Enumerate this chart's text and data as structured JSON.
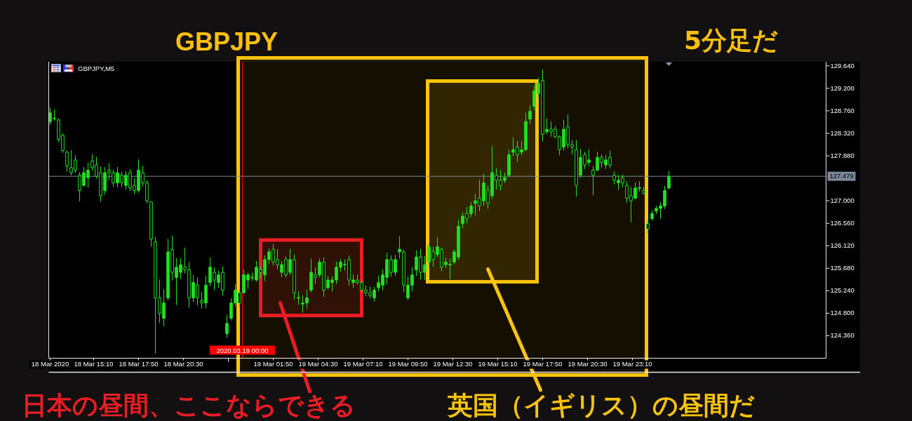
{
  "chart_data": {
    "type": "candlestick",
    "title": "GBPJPY",
    "subtitle": "GBPJPY,M5",
    "annotations": [
      "5分足だ"
    ],
    "color": "#22e022",
    "x": [
      "2020-03-18T12:35",
      "2020-03-18T12:50",
      "2020-03-18T13:05",
      "2020-03-18T13:20",
      "2020-03-18T13:35",
      "2020-03-18T13:50",
      "2020-03-18T14:05",
      "2020-03-18T14:20",
      "2020-03-18T14:35",
      "2020-03-18T14:50",
      "2020-03-18T15:05",
      "2020-03-18T15:20",
      "2020-03-18T15:35",
      "2020-03-18T15:50",
      "2020-03-18T16:05",
      "2020-03-18T16:20",
      "2020-03-18T16:35",
      "2020-03-18T16:50",
      "2020-03-18T17:05",
      "2020-03-18T17:20",
      "2020-03-18T17:35",
      "2020-03-18T17:50",
      "2020-03-18T18:05",
      "2020-03-18T18:20",
      "2020-03-18T18:35",
      "2020-03-18T18:50",
      "2020-03-18T19:05",
      "2020-03-18T19:20",
      "2020-03-18T19:35",
      "2020-03-18T19:50",
      "2020-03-18T20:05",
      "2020-03-18T20:20",
      "2020-03-18T20:35",
      "2020-03-18T20:50",
      "2020-03-18T21:05",
      "2020-03-18T21:20",
      "2020-03-18T21:35",
      "2020-03-18T21:50",
      "2020-03-18T22:05",
      "2020-03-18T22:20",
      "2020-03-18T22:35",
      "2020-03-18T22:50",
      "2020-03-18T23:05",
      "2020-03-18T23:20",
      "2020-03-18T23:35",
      "2020-03-18T23:50",
      "2020-03-19T00:05",
      "2020-03-19T00:20",
      "2020-03-19T00:35",
      "2020-03-19T00:50",
      "2020-03-19T01:05",
      "2020-03-19T01:20",
      "2020-03-19T01:35",
      "2020-03-19T01:50",
      "2020-03-19T02:05",
      "2020-03-19T02:20",
      "2020-03-19T02:35",
      "2020-03-19T02:50",
      "2020-03-19T03:05",
      "2020-03-19T03:20",
      "2020-03-19T03:35",
      "2020-03-19T03:50",
      "2020-03-19T04:05",
      "2020-03-19T04:20",
      "2020-03-19T04:35",
      "2020-03-19T04:50",
      "2020-03-19T05:05",
      "2020-03-19T05:20",
      "2020-03-19T05:35",
      "2020-03-19T05:50",
      "2020-03-19T06:05",
      "2020-03-19T06:20",
      "2020-03-19T06:35",
      "2020-03-19T06:50",
      "2020-03-19T07:05",
      "2020-03-19T07:20",
      "2020-03-19T07:35",
      "2020-03-19T07:50",
      "2020-03-19T08:05",
      "2020-03-19T08:20",
      "2020-03-19T08:35",
      "2020-03-19T08:50",
      "2020-03-19T09:05",
      "2020-03-19T09:20",
      "2020-03-19T09:35",
      "2020-03-19T09:50",
      "2020-03-19T10:05",
      "2020-03-19T10:20",
      "2020-03-19T10:35",
      "2020-03-19T10:50",
      "2020-03-19T11:05",
      "2020-03-19T11:20",
      "2020-03-19T11:35",
      "2020-03-19T11:50",
      "2020-03-19T12:05",
      "2020-03-19T12:20",
      "2020-03-19T12:35",
      "2020-03-19T12:50",
      "2020-03-19T13:05",
      "2020-03-19T13:20",
      "2020-03-19T13:35",
      "2020-03-19T13:50",
      "2020-03-19T14:05",
      "2020-03-19T14:20",
      "2020-03-19T14:35",
      "2020-03-19T14:50",
      "2020-03-19T15:05",
      "2020-03-19T15:20",
      "2020-03-19T15:35",
      "2020-03-19T15:50",
      "2020-03-19T16:05",
      "2020-03-19T16:20",
      "2020-03-19T16:35",
      "2020-03-19T16:50",
      "2020-03-19T17:05",
      "2020-03-19T17:20",
      "2020-03-19T17:35",
      "2020-03-19T17:50",
      "2020-03-19T18:05",
      "2020-03-19T18:20",
      "2020-03-19T18:35",
      "2020-03-19T18:50",
      "2020-03-19T19:05",
      "2020-03-19T19:20",
      "2020-03-19T19:35",
      "2020-03-19T19:50",
      "2020-03-19T20:05",
      "2020-03-19T20:20",
      "2020-03-19T20:35",
      "2020-03-19T20:50",
      "2020-03-19T21:05",
      "2020-03-19T21:20",
      "2020-03-19T21:35",
      "2020-03-19T21:50",
      "2020-03-19T22:05",
      "2020-03-19T22:20",
      "2020-03-19T22:35",
      "2020-03-19T22:50",
      "2020-03-19T23:05",
      "2020-03-19T23:20",
      "2020-03-19T23:35",
      "2020-03-19T23:50",
      "2020-03-20T00:05",
      "2020-03-20T00:20",
      "2020-03-20T00:35",
      "2020-03-20T00:50",
      "2020-03-20T01:05",
      "2020-03-20T01:20"
    ],
    "ohlc": [
      [
        128.55,
        128.82,
        128.49,
        128.72
      ],
      [
        128.62,
        128.78,
        128.57,
        128.6
      ],
      [
        128.58,
        128.61,
        128.15,
        128.2
      ],
      [
        128.28,
        128.32,
        127.94,
        127.98
      ],
      [
        127.95,
        127.98,
        127.57,
        127.68
      ],
      [
        127.65,
        127.99,
        127.5,
        127.55
      ],
      [
        127.8,
        127.89,
        127.55,
        127.6
      ],
      [
        127.5,
        127.56,
        126.99,
        127.2
      ],
      [
        127.3,
        127.66,
        127.28,
        127.55
      ],
      [
        127.45,
        127.75,
        127.26,
        127.6
      ],
      [
        127.78,
        127.91,
        127.59,
        127.65
      ],
      [
        127.7,
        127.86,
        127.43,
        127.48
      ],
      [
        127.55,
        127.67,
        126.98,
        127.1
      ],
      [
        127.2,
        127.66,
        127.12,
        127.55
      ],
      [
        127.6,
        127.73,
        127.41,
        127.55
      ],
      [
        127.55,
        127.61,
        127.27,
        127.35
      ],
      [
        127.35,
        127.66,
        127.26,
        127.55
      ],
      [
        127.5,
        127.57,
        127.27,
        127.35
      ],
      [
        127.3,
        127.58,
        127.22,
        127.5
      ],
      [
        127.55,
        127.62,
        127.19,
        127.25
      ],
      [
        127.3,
        127.44,
        127.13,
        127.2
      ],
      [
        127.2,
        127.81,
        127.16,
        127.6
      ],
      [
        127.55,
        127.68,
        127.28,
        127.35
      ],
      [
        127.35,
        127.4,
        126.95,
        127.0
      ],
      [
        126.98,
        126.99,
        126.1,
        126.25
      ],
      [
        126.2,
        126.29,
        124.01,
        125.1
      ],
      [
        125.1,
        125.46,
        124.61,
        124.8
      ],
      [
        124.7,
        125.27,
        124.55,
        125.0
      ],
      [
        125.1,
        126.25,
        125.05,
        126.0
      ],
      [
        126.05,
        126.32,
        125.44,
        125.6
      ],
      [
        125.5,
        125.88,
        124.96,
        125.7
      ],
      [
        125.6,
        125.88,
        125.47,
        125.75
      ],
      [
        125.7,
        126.08,
        125.58,
        125.65
      ],
      [
        125.65,
        125.8,
        124.91,
        125.1
      ],
      [
        125.1,
        125.55,
        125.02,
        125.4
      ],
      [
        125.35,
        125.5,
        124.95,
        125.1
      ],
      [
        125.05,
        125.22,
        124.89,
        125.0
      ],
      [
        125.0,
        125.53,
        124.9,
        125.35
      ],
      [
        125.4,
        125.89,
        125.33,
        125.7
      ],
      [
        125.6,
        125.69,
        125.26,
        125.45
      ],
      [
        125.4,
        125.63,
        125.3,
        125.55
      ],
      [
        125.6,
        125.71,
        125.14,
        125.25
      ],
      [
        124.4,
        124.77,
        124.32,
        124.6
      ],
      [
        124.7,
        125.09,
        124.66,
        125.0
      ],
      [
        125.0,
        125.37,
        124.93,
        125.25
      ],
      [
        125.2,
        125.26,
        124.9,
        125.0
      ],
      [
        125.2,
        125.66,
        125.18,
        125.55
      ],
      [
        125.45,
        125.59,
        125.28,
        125.55
      ],
      [
        125.5,
        125.59,
        125.44,
        125.5
      ],
      [
        125.45,
        125.82,
        125.42,
        125.7
      ],
      [
        125.65,
        125.72,
        125.49,
        125.6
      ],
      [
        125.55,
        125.93,
        125.43,
        125.85
      ],
      [
        125.85,
        126.07,
        125.76,
        126.0
      ],
      [
        126.05,
        126.15,
        125.73,
        125.8
      ],
      [
        125.85,
        126.05,
        125.66,
        125.75
      ],
      [
        125.6,
        125.82,
        125.51,
        125.75
      ],
      [
        125.85,
        125.91,
        125.5,
        125.55
      ],
      [
        125.6,
        126.06,
        125.55,
        125.85
      ],
      [
        125.85,
        125.95,
        125.07,
        125.2
      ],
      [
        125.1,
        125.23,
        124.96,
        125.1
      ],
      [
        124.98,
        125.15,
        124.81,
        125.0
      ],
      [
        125.0,
        125.26,
        124.89,
        125.1
      ],
      [
        125.25,
        125.87,
        125.21,
        125.6
      ],
      [
        125.55,
        125.7,
        125.38,
        125.5
      ],
      [
        125.55,
        125.87,
        125.5,
        125.8
      ],
      [
        125.8,
        125.89,
        125.12,
        125.25
      ],
      [
        125.3,
        125.53,
        125.26,
        125.45
      ],
      [
        125.4,
        125.52,
        125.22,
        125.45
      ],
      [
        125.45,
        125.81,
        125.37,
        125.7
      ],
      [
        125.7,
        125.86,
        125.61,
        125.8
      ],
      [
        125.75,
        125.85,
        125.63,
        125.75
      ],
      [
        125.85,
        125.93,
        125.34,
        125.45
      ],
      [
        125.4,
        125.56,
        125.3,
        125.45
      ],
      [
        125.45,
        125.56,
        125.36,
        125.4
      ],
      [
        125.4,
        125.46,
        125.19,
        125.25
      ],
      [
        125.25,
        125.34,
        125.13,
        125.2
      ],
      [
        125.2,
        125.32,
        125.09,
        125.15
      ],
      [
        125.1,
        125.31,
        125.03,
        125.25
      ],
      [
        125.3,
        125.53,
        125.23,
        125.4
      ],
      [
        125.35,
        125.66,
        125.25,
        125.55
      ],
      [
        125.5,
        125.98,
        125.37,
        125.85
      ],
      [
        125.85,
        125.93,
        125.51,
        125.6
      ],
      [
        125.6,
        125.94,
        125.53,
        125.85
      ],
      [
        126.0,
        126.3,
        125.87,
        126.05
      ],
      [
        126.0,
        126.04,
        125.21,
        125.35
      ],
      [
        125.1,
        125.52,
        125.06,
        125.35
      ],
      [
        125.35,
        125.7,
        125.23,
        125.55
      ],
      [
        125.65,
        126.03,
        125.53,
        125.9
      ],
      [
        125.9,
        126.06,
        125.46,
        125.6
      ],
      [
        125.6,
        125.92,
        125.45,
        125.75
      ],
      [
        125.8,
        126.18,
        125.69,
        126.1
      ],
      [
        126.0,
        126.1,
        125.71,
        125.85
      ],
      [
        125.95,
        126.29,
        125.9,
        126.1
      ],
      [
        126.05,
        126.08,
        125.62,
        125.7
      ],
      [
        125.75,
        125.89,
        125.69,
        125.8
      ],
      [
        125.75,
        125.87,
        125.47,
        125.75
      ],
      [
        125.8,
        126.05,
        125.76,
        126.0
      ],
      [
        125.9,
        126.63,
        125.84,
        126.5
      ],
      [
        126.55,
        126.77,
        126.46,
        126.7
      ],
      [
        126.75,
        126.88,
        126.56,
        126.65
      ],
      [
        126.75,
        126.97,
        126.68,
        126.9
      ],
      [
        126.95,
        127.13,
        126.72,
        127.0
      ],
      [
        127.05,
        127.41,
        126.79,
        126.9
      ],
      [
        127.0,
        127.53,
        126.9,
        127.35
      ],
      [
        127.2,
        127.29,
        126.85,
        126.95
      ],
      [
        127.1,
        128.07,
        127.04,
        127.55
      ],
      [
        127.5,
        127.64,
        127.22,
        127.4
      ],
      [
        127.4,
        127.6,
        127.2,
        127.3
      ],
      [
        127.4,
        127.55,
        127.35,
        127.45
      ],
      [
        127.5,
        128.0,
        127.46,
        127.9
      ],
      [
        127.95,
        128.24,
        127.87,
        128.0
      ],
      [
        128.05,
        128.17,
        127.76,
        127.9
      ],
      [
        127.95,
        128.17,
        127.89,
        128.0
      ],
      [
        128.0,
        128.72,
        127.97,
        128.55
      ],
      [
        128.6,
        128.86,
        128.51,
        128.75
      ],
      [
        128.85,
        129.26,
        128.77,
        129.15
      ],
      [
        129.1,
        129.41,
        129.02,
        129.3
      ],
      [
        129.35,
        129.57,
        128.16,
        128.3
      ],
      [
        128.35,
        128.61,
        128.3,
        128.4
      ],
      [
        128.4,
        128.55,
        128.25,
        128.35
      ],
      [
        128.4,
        128.46,
        128.23,
        128.25
      ],
      [
        128.25,
        128.28,
        127.89,
        128.0
      ],
      [
        128.05,
        128.58,
        127.98,
        128.4
      ],
      [
        128.45,
        128.69,
        128.03,
        128.1
      ],
      [
        128.1,
        128.19,
        127.91,
        128.05
      ],
      [
        128.0,
        128.19,
        127.08,
        127.3
      ],
      [
        127.5,
        128.01,
        127.45,
        127.85
      ],
      [
        127.9,
        127.96,
        127.62,
        127.7
      ],
      [
        127.75,
        128.01,
        127.68,
        127.8
      ],
      [
        127.6,
        127.68,
        127.11,
        127.5
      ],
      [
        127.6,
        127.96,
        127.58,
        127.85
      ],
      [
        127.85,
        127.91,
        127.65,
        127.75
      ],
      [
        127.7,
        127.9,
        127.62,
        127.8
      ],
      [
        127.85,
        127.98,
        127.64,
        127.7
      ],
      [
        127.5,
        127.57,
        127.32,
        127.4
      ],
      [
        127.35,
        127.5,
        127.21,
        127.4
      ],
      [
        127.45,
        127.51,
        127.27,
        127.35
      ],
      [
        127.3,
        127.38,
        126.96,
        127.05
      ],
      [
        127.1,
        127.27,
        126.58,
        127.0
      ],
      [
        127.05,
        127.36,
        127.03,
        127.25
      ],
      [
        127.25,
        127.38,
        127.18,
        127.25
      ],
      [
        127.2,
        127.27,
        127.12,
        127.15
      ],
      [
        126.55,
        126.64,
        126.36,
        126.45
      ],
      [
        126.65,
        126.81,
        126.61,
        126.75
      ],
      [
        126.8,
        126.9,
        126.74,
        126.85
      ],
      [
        126.85,
        126.97,
        126.65,
        126.9
      ],
      [
        126.9,
        127.29,
        126.84,
        127.2
      ],
      [
        127.25,
        127.58,
        127.22,
        127.48
      ]
    ],
    "xlim": [
      "2020-03-18T12:30",
      "2020-03-20T10:40"
    ],
    "xticks": [
      {
        "value": "2020-03-18T12:35",
        "label": "18 Mar 2020"
      },
      {
        "value": "2020-03-18T15:10",
        "label": "18 Mar 15:10"
      },
      {
        "value": "2020-03-18T17:50",
        "label": "18 Mar 17:50"
      },
      {
        "value": "2020-03-18T20:30",
        "label": "18 Mar 20:30"
      },
      {
        "value": "2020-03-18T23:10",
        "label": null
      },
      {
        "value": "2020-03-19T01:50",
        "label": "19 Mar 01:50"
      },
      {
        "value": "2020-03-19T04:30",
        "label": "19 Mar 04:30"
      },
      {
        "value": "2020-03-19T07:10",
        "label": "19 Mar 07:10"
      },
      {
        "value": "2020-03-19T09:50",
        "label": "19 Mar 09:50"
      },
      {
        "value": "2020-03-19T12:30",
        "label": "19 Mar 12:30"
      },
      {
        "value": "2020-03-19T15:10",
        "label": "19 Mar 15:10"
      },
      {
        "value": "2020-03-19T17:50",
        "label": "19 Mar 17:50"
      },
      {
        "value": "2020-03-19T20:30",
        "label": "19 Mar 20:30"
      },
      {
        "value": "2020-03-19T23:10",
        "label": "19 Mar 23:10"
      }
    ],
    "ylim": [
      123.92,
      129.72
    ],
    "yticks": [
      {
        "value": 124.36,
        "label": "124.360"
      },
      {
        "value": 124.8,
        "label": "124.800"
      },
      {
        "value": 125.24,
        "label": "125.240"
      },
      {
        "value": 125.68,
        "label": "125.680"
      },
      {
        "value": 126.12,
        "label": "126.120"
      },
      {
        "value": 126.56,
        "label": "126.560"
      },
      {
        "value": 127.0,
        "label": "127.000"
      },
      {
        "value": 127.88,
        "label": "127.880"
      },
      {
        "value": 128.32,
        "label": "128.320"
      },
      {
        "value": 128.76,
        "label": "128.760"
      },
      {
        "value": 129.2,
        "label": "129.200"
      },
      {
        "value": 129.64,
        "label": "129.640"
      }
    ],
    "ref_lines": [
      {
        "axis": "y",
        "value": 127.479,
        "label": "127.479",
        "color": "#778899"
      },
      {
        "axis": "x",
        "value": "2020-03-19T00:00",
        "label": "2020.03.19 00:00",
        "color": "#ff0000"
      }
    ],
    "bands": [
      {
        "axis": "x",
        "from": "2020-03-18T23:45",
        "to": "2020-03-20T00:00",
        "label": null,
        "color": "#fcc30b"
      },
      {
        "axis": "x",
        "from": "2020-03-19T01:05",
        "to": "2020-03-19T07:05",
        "label": "日本の昼間、ここならできる",
        "color": "#ec1c24"
      },
      {
        "axis": "x",
        "from": "2020-03-19T11:00",
        "to": "2020-03-19T17:30",
        "label": "英国（イギリス）の昼間だ",
        "color": "#fcc30b"
      }
    ]
  }
}
